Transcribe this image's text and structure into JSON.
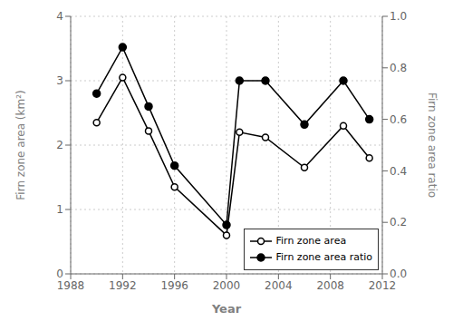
{
  "chart_data": {
    "type": "line",
    "x": [
      1990,
      1992,
      1994,
      1996,
      2000,
      2001,
      2003,
      2006,
      2009,
      2011
    ],
    "xlabel": "Year",
    "ylabel": "Firn zone area (km²)",
    "y2label": "Firn zone area ratio",
    "xlim": [
      1988,
      2012
    ],
    "ylim": [
      0,
      4
    ],
    "y2lim": [
      0.0,
      1.0
    ],
    "xticks": [
      1988,
      1992,
      1996,
      2000,
      2004,
      2008,
      2012
    ],
    "yticks": [
      0,
      1,
      2,
      3,
      4
    ],
    "y2ticks": [
      {
        "value": 0,
        "label": "0.0"
      },
      0.2,
      0.4,
      0.6,
      0.8,
      {
        "value": 1,
        "label": "1.0"
      }
    ],
    "grid": true,
    "legend": "lower right",
    "series": [
      {
        "name": "Firn zone area",
        "color": "black",
        "marker": "open",
        "values": [
          2.35,
          3.05,
          2.22,
          1.35,
          0.6,
          2.2,
          2.12,
          1.65,
          2.3,
          1.8
        ]
      },
      {
        "name": "Firn zone area ratio",
        "color": "black",
        "marker": "filled",
        "axis": "y2",
        "values": [
          0.7,
          0.88,
          0.65,
          0.42,
          0.19,
          0.75,
          0.75,
          0.58,
          0.75,
          0.6
        ]
      }
    ]
  }
}
